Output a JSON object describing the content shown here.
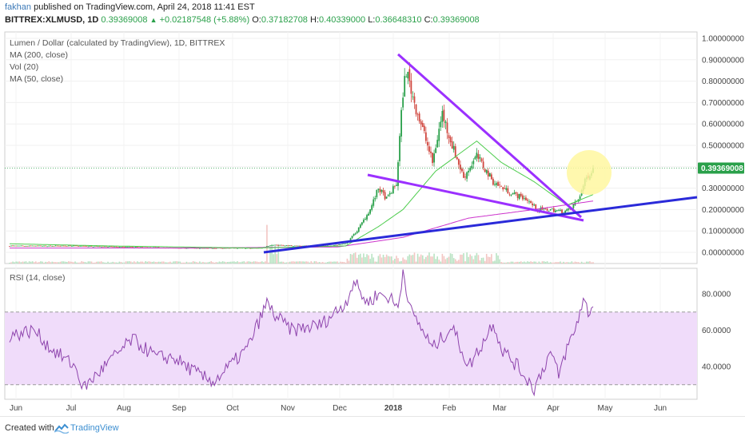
{
  "header": {
    "author": "fakhan",
    "published": "published on TradingView.com, April 24, 2018 11:41 EST",
    "symbol_line": "BITTREX:XLMUSD, 1D",
    "last": "0.39369008",
    "change": "+0.02187548 (+5.88%)",
    "open_label": "O:",
    "open": "0.37182708",
    "high_label": "H:",
    "high": "0.40339000",
    "low_label": "L:",
    "low": "0.36648310",
    "close_label": "C:",
    "close": "0.39369008"
  },
  "legend": {
    "title": "Lumen / Dollar (calculated by TradingView), 1D, BITTREX",
    "ma200": "MA (200, close)",
    "vol": "Vol (20)",
    "ma50": "MA (50, close)",
    "rsi": "RSI (14, close)"
  },
  "price_badge": "0.39369008",
  "footer": {
    "created_with": "Created with",
    "brand": "TradingView"
  },
  "colors": {
    "up": "#2aa04a",
    "down": "#d0473f",
    "ma50": "#4ccc4c",
    "ma200": "#cc33cc",
    "triangle": "#9b30ff",
    "support": "#2a2ad9",
    "rsi_line": "#8e44ad",
    "rsi_band": "#f0dcfa",
    "highlight": "#fff7a0",
    "badge": "#2aa04a"
  },
  "chart_data": [
    {
      "type": "candlestick",
      "title": "Lumen / Dollar (calculated by TradingView), 1D, BITTREX",
      "x_ticks": [
        "Jun",
        "Jul",
        "Aug",
        "Sep",
        "Oct",
        "Nov",
        "Dec",
        "2018",
        "Feb",
        "Mar",
        "Apr",
        "May",
        "Jun"
      ],
      "y_ticks": [
        "0.00000000",
        "0.10000000",
        "0.20000000",
        "0.30000000",
        "0.40000000",
        "0.50000000",
        "0.60000000",
        "0.70000000",
        "0.80000000",
        "0.90000000",
        "1.00000000"
      ],
      "ylim": [
        -0.03,
        1.02
      ],
      "last_value": 0.39369008,
      "anchors": [
        {
          "t": 0,
          "v": 0.03
        },
        {
          "t": 40,
          "v": 0.03
        },
        {
          "t": 70,
          "v": 0.025
        },
        {
          "t": 100,
          "v": 0.02
        },
        {
          "t": 130,
          "v": 0.02
        },
        {
          "t": 153,
          "v": 0.02
        },
        {
          "t": 160,
          "v": 0.035
        },
        {
          "t": 175,
          "v": 0.03
        },
        {
          "t": 195,
          "v": 0.03
        },
        {
          "t": 205,
          "v": 0.04
        },
        {
          "t": 212,
          "v": 0.1
        },
        {
          "t": 220,
          "v": 0.2
        },
        {
          "t": 225,
          "v": 0.3
        },
        {
          "t": 230,
          "v": 0.25
        },
        {
          "t": 236,
          "v": 0.32
        },
        {
          "t": 240,
          "v": 0.75
        },
        {
          "t": 242,
          "v": 0.85
        },
        {
          "t": 247,
          "v": 0.7
        },
        {
          "t": 253,
          "v": 0.55
        },
        {
          "t": 258,
          "v": 0.42
        },
        {
          "t": 264,
          "v": 0.65
        },
        {
          "t": 270,
          "v": 0.5
        },
        {
          "t": 277,
          "v": 0.35
        },
        {
          "t": 285,
          "v": 0.45
        },
        {
          "t": 295,
          "v": 0.33
        },
        {
          "t": 305,
          "v": 0.28
        },
        {
          "t": 315,
          "v": 0.25
        },
        {
          "t": 322,
          "v": 0.2
        },
        {
          "t": 330,
          "v": 0.2
        },
        {
          "t": 337,
          "v": 0.19
        },
        {
          "t": 342,
          "v": 0.2
        },
        {
          "t": 347,
          "v": 0.25
        },
        {
          "t": 352,
          "v": 0.35
        },
        {
          "t": 356,
          "v": 0.39
        }
      ],
      "ma50": [
        {
          "t": 0,
          "v": 0.04
        },
        {
          "t": 60,
          "v": 0.03
        },
        {
          "t": 150,
          "v": 0.02
        },
        {
          "t": 205,
          "v": 0.03
        },
        {
          "t": 225,
          "v": 0.12
        },
        {
          "t": 240,
          "v": 0.2
        },
        {
          "t": 260,
          "v": 0.38
        },
        {
          "t": 285,
          "v": 0.52
        },
        {
          "t": 300,
          "v": 0.42
        },
        {
          "t": 320,
          "v": 0.33
        },
        {
          "t": 340,
          "v": 0.22
        },
        {
          "t": 356,
          "v": 0.27
        }
      ],
      "ma200": [
        {
          "t": 0,
          "v": 0.02
        },
        {
          "t": 100,
          "v": 0.02
        },
        {
          "t": 200,
          "v": 0.025
        },
        {
          "t": 240,
          "v": 0.07
        },
        {
          "t": 280,
          "v": 0.16
        },
        {
          "t": 320,
          "v": 0.2
        },
        {
          "t": 356,
          "v": 0.24
        }
      ]
    },
    {
      "type": "line",
      "title": "RSI (14, close)",
      "y_ticks": [
        "40.0000",
        "60.0000",
        "80.0000"
      ],
      "ylim": [
        22,
        95
      ],
      "bands": [
        30,
        70
      ],
      "anchors": [
        {
          "t": 0,
          "v": 57
        },
        {
          "t": 15,
          "v": 60
        },
        {
          "t": 25,
          "v": 50
        },
        {
          "t": 40,
          "v": 40
        },
        {
          "t": 45,
          "v": 28
        },
        {
          "t": 60,
          "v": 42
        },
        {
          "t": 75,
          "v": 55
        },
        {
          "t": 90,
          "v": 45
        },
        {
          "t": 100,
          "v": 45
        },
        {
          "t": 118,
          "v": 34
        },
        {
          "t": 125,
          "v": 32
        },
        {
          "t": 145,
          "v": 50
        },
        {
          "t": 157,
          "v": 75
        },
        {
          "t": 162,
          "v": 68
        },
        {
          "t": 172,
          "v": 60
        },
        {
          "t": 190,
          "v": 63
        },
        {
          "t": 205,
          "v": 75
        },
        {
          "t": 210,
          "v": 87
        },
        {
          "t": 218,
          "v": 75
        },
        {
          "t": 225,
          "v": 80
        },
        {
          "t": 232,
          "v": 78
        },
        {
          "t": 237,
          "v": 72
        },
        {
          "t": 240,
          "v": 93
        },
        {
          "t": 245,
          "v": 70
        },
        {
          "t": 252,
          "v": 60
        },
        {
          "t": 258,
          "v": 50
        },
        {
          "t": 270,
          "v": 62
        },
        {
          "t": 280,
          "v": 40
        },
        {
          "t": 290,
          "v": 55
        },
        {
          "t": 295,
          "v": 65
        },
        {
          "t": 300,
          "v": 50
        },
        {
          "t": 310,
          "v": 40
        },
        {
          "t": 320,
          "v": 28
        },
        {
          "t": 330,
          "v": 48
        },
        {
          "t": 335,
          "v": 35
        },
        {
          "t": 340,
          "v": 50
        },
        {
          "t": 345,
          "v": 60
        },
        {
          "t": 350,
          "v": 77
        },
        {
          "t": 353,
          "v": 70
        },
        {
          "t": 356,
          "v": 73
        }
      ]
    }
  ]
}
